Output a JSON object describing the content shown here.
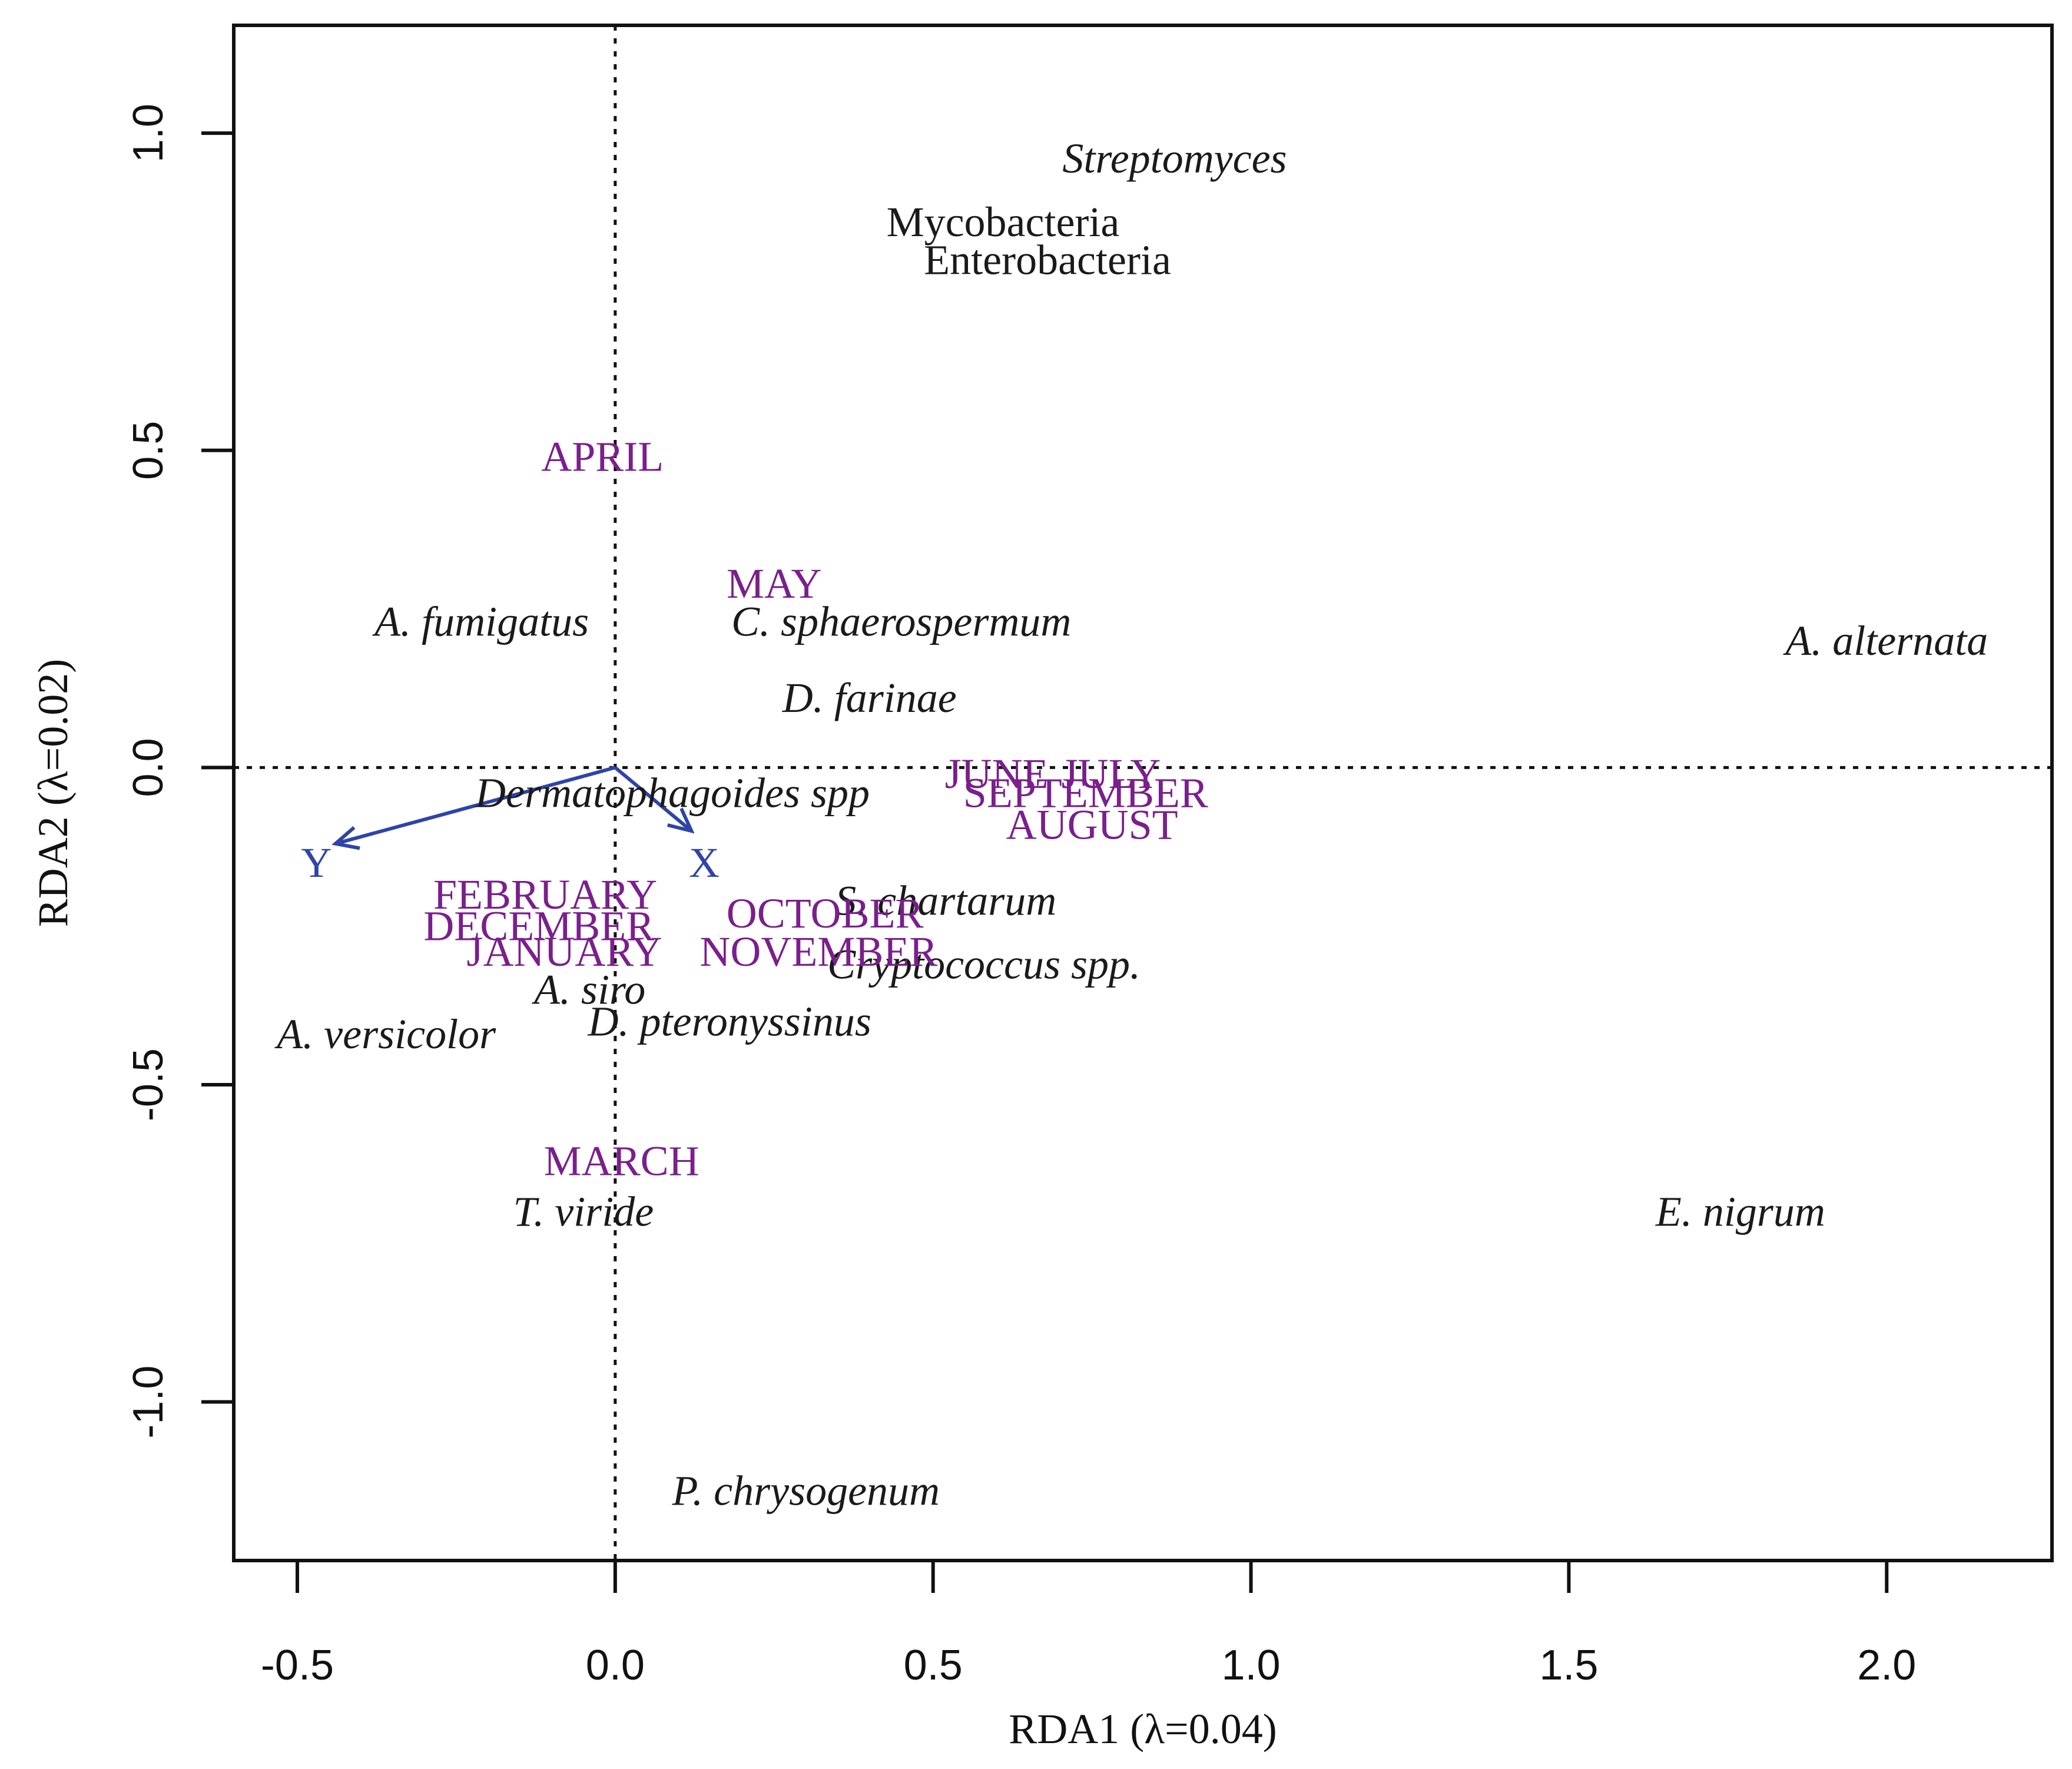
{
  "chart_data": {
    "type": "scatter",
    "subtype": "RDA ordination biplot",
    "title": "",
    "xlabel": "RDA1 (λ=0.04)",
    "ylabel": "RDA2 (λ=0.02)",
    "xlim": [
      -0.6,
      2.26
    ],
    "ylim": [
      -1.25,
      1.17
    ],
    "xticks": [
      -0.5,
      0.0,
      0.5,
      1.0,
      1.5,
      2.0
    ],
    "xtick_labels": [
      "-0.5",
      "0.0",
      "0.5",
      "1.0",
      "1.5",
      "2.0"
    ],
    "yticks": [
      -1.0,
      -0.5,
      0.0,
      0.5,
      1.0
    ],
    "ytick_labels": [
      "-1.0",
      "-0.5",
      "0.0",
      "0.5",
      "1.0"
    ],
    "reference_lines": {
      "x0": 0,
      "y0": 0,
      "style": "dotted"
    },
    "colors": {
      "species": "#1a1a1a",
      "month": "#7a1f8c",
      "vector": "#2e44a8",
      "axis": "#111111"
    },
    "species": [
      {
        "label": "Streptomyces",
        "x": 0.88,
        "y": 0.96,
        "italic": true
      },
      {
        "label": "Mycobacteria",
        "x": 0.61,
        "y": 0.86,
        "italic": false
      },
      {
        "label": "Enterobacteria",
        "x": 0.68,
        "y": 0.8,
        "italic": false
      },
      {
        "label": "A. fumigatus",
        "x": -0.21,
        "y": 0.23,
        "italic": true
      },
      {
        "label": "C. sphaerospermum",
        "x": 0.45,
        "y": 0.23,
        "italic": true
      },
      {
        "label": "A. alternata",
        "x": 2.0,
        "y": 0.2,
        "italic": true
      },
      {
        "label": "D. farinae",
        "x": 0.4,
        "y": 0.11,
        "italic": true
      },
      {
        "label": "Dermatophagoides spp",
        "x": 0.09,
        "y": -0.04,
        "italic": true
      },
      {
        "label": "S. chartarum",
        "x": 0.52,
        "y": -0.21,
        "italic": true
      },
      {
        "label": "Cryptococcus spp.",
        "x": 0.58,
        "y": -0.31,
        "italic": true
      },
      {
        "label": "A. siro",
        "x": -0.04,
        "y": -0.35,
        "italic": true
      },
      {
        "label": "D. pteronyssinus",
        "x": 0.18,
        "y": -0.4,
        "italic": true
      },
      {
        "label": "A. versicolor",
        "x": -0.36,
        "y": -0.42,
        "italic": true
      },
      {
        "label": "T. viride",
        "x": -0.05,
        "y": -0.7,
        "italic": true
      },
      {
        "label": "E. nigrum",
        "x": 1.77,
        "y": -0.7,
        "italic": true
      },
      {
        "label": "P. chrysogenum",
        "x": 0.3,
        "y": -1.14,
        "italic": true
      }
    ],
    "months": [
      {
        "label": "APRIL",
        "x": -0.02,
        "y": 0.49
      },
      {
        "label": "MAY",
        "x": 0.25,
        "y": 0.29
      },
      {
        "label": "JUNE",
        "x": 0.6,
        "y": -0.01
      },
      {
        "label": "JULY",
        "x": 0.78,
        "y": -0.01
      },
      {
        "label": "SEPTEMBER",
        "x": 0.74,
        "y": -0.04
      },
      {
        "label": "AUGUST",
        "x": 0.75,
        "y": -0.09
      },
      {
        "label": "FEBRUARY",
        "x": -0.11,
        "y": -0.2
      },
      {
        "label": "OCTOBER",
        "x": 0.33,
        "y": -0.23
      },
      {
        "label": "DECEMBER",
        "x": -0.12,
        "y": -0.25
      },
      {
        "label": "JANUARY",
        "x": -0.08,
        "y": -0.29
      },
      {
        "label": "NOVEMBER",
        "x": 0.32,
        "y": -0.29
      },
      {
        "label": "MARCH",
        "x": 0.01,
        "y": -0.62
      }
    ],
    "vectors": [
      {
        "label": "Y",
        "x": -0.44,
        "y": -0.12,
        "label_x": -0.47,
        "label_y": -0.15
      },
      {
        "label": "X",
        "x": 0.12,
        "y": -0.1,
        "label_x": 0.14,
        "label_y": -0.15
      }
    ]
  }
}
